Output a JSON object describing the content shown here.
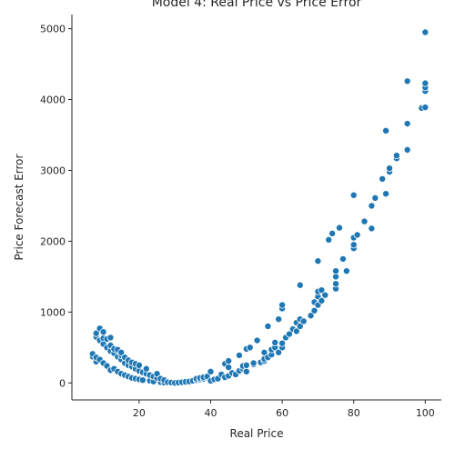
{
  "chart_data": {
    "type": "scatter",
    "title": "Model 4: Real Price vs Price Error",
    "xlabel": "Real Price",
    "ylabel": "Price Forecast Error",
    "xlim": [
      1.2,
      104.5
    ],
    "ylim": [
      -240,
      5200
    ],
    "xticks": [
      20,
      40,
      60,
      80,
      100
    ],
    "yticks": [
      0,
      1000,
      2000,
      3000,
      4000,
      5000
    ],
    "x_tick_labels": [
      "20",
      "40",
      "60",
      "80",
      "100"
    ],
    "y_tick_labels": [
      "0",
      "1000",
      "2000",
      "3000",
      "4000",
      "5000"
    ],
    "grid": false,
    "point_color": "#1f77b4",
    "series": [
      {
        "x": [
          7,
          7,
          8,
          8,
          8,
          8,
          9,
          9,
          9,
          10,
          10,
          10,
          10,
          11,
          11,
          11,
          12,
          12,
          12,
          12,
          13,
          13,
          13,
          14,
          14,
          14,
          15,
          15,
          15,
          15,
          16,
          16,
          16,
          17,
          17,
          17,
          18,
          18,
          18,
          19,
          19,
          19,
          20,
          20,
          20,
          21,
          21,
          22,
          22,
          23,
          23,
          24,
          24,
          25,
          25,
          26,
          26,
          27,
          27,
          28,
          29,
          30,
          31,
          32,
          33,
          34,
          35,
          36,
          36,
          37,
          37,
          38,
          38,
          39,
          40,
          40,
          41,
          42,
          43,
          44,
          44,
          45,
          45,
          45,
          46,
          47,
          48,
          48,
          49,
          49,
          50,
          50,
          50,
          51,
          52,
          52,
          53,
          54,
          55,
          55,
          55,
          56,
          56,
          57,
          57,
          58,
          58,
          59,
          59,
          60,
          60,
          60,
          60,
          61,
          62,
          63,
          64,
          64,
          65,
          65,
          65,
          66,
          68,
          69,
          69,
          70,
          70,
          70,
          70,
          71,
          71,
          72,
          73,
          74,
          75,
          75,
          75,
          75,
          76,
          77,
          78,
          80,
          80,
          80,
          80,
          81,
          83,
          85,
          85,
          86,
          88,
          89,
          89,
          90,
          90,
          92,
          92,
          95,
          95,
          95,
          99,
          100,
          100,
          100,
          100,
          100
        ],
        "y": [
          370,
          410,
          650,
          700,
          300,
          360,
          770,
          330,
          600,
          280,
          550,
          630,
          720,
          240,
          500,
          620,
          180,
          450,
          530,
          640,
          200,
          420,
          480,
          160,
          370,
          470,
          130,
          330,
          390,
          430,
          110,
          280,
          360,
          90,
          250,
          320,
          70,
          230,
          290,
          60,
          200,
          270,
          50,
          170,
          250,
          40,
          150,
          130,
          200,
          30,
          110,
          20,
          90,
          70,
          130,
          10,
          60,
          5,
          40,
          10,
          5,
          0,
          5,
          10,
          15,
          20,
          30,
          40,
          60,
          50,
          70,
          60,
          80,
          90,
          30,
          160,
          50,
          60,
          120,
          80,
          270,
          100,
          220,
          310,
          140,
          120,
          170,
          390,
          200,
          240,
          160,
          250,
          480,
          500,
          260,
          280,
          600,
          290,
          310,
          340,
          430,
          360,
          800,
          400,
          470,
          500,
          570,
          430,
          900,
          500,
          560,
          1050,
          1100,
          640,
          690,
          760,
          730,
          850,
          800,
          900,
          1380,
          870,
          950,
          1020,
          1140,
          1100,
          1220,
          1290,
          1720,
          1160,
          1310,
          1240,
          2020,
          2110,
          1330,
          1400,
          1500,
          1580,
          2190,
          1750,
          1580,
          1900,
          1950,
          2050,
          2650,
          2090,
          2280,
          2180,
          2500,
          2610,
          2880,
          2670,
          3560,
          2980,
          3030,
          3170,
          3210,
          3290,
          3660,
          4260,
          3880,
          3890,
          4120,
          4170,
          4230,
          4950
        ]
      }
    ]
  }
}
